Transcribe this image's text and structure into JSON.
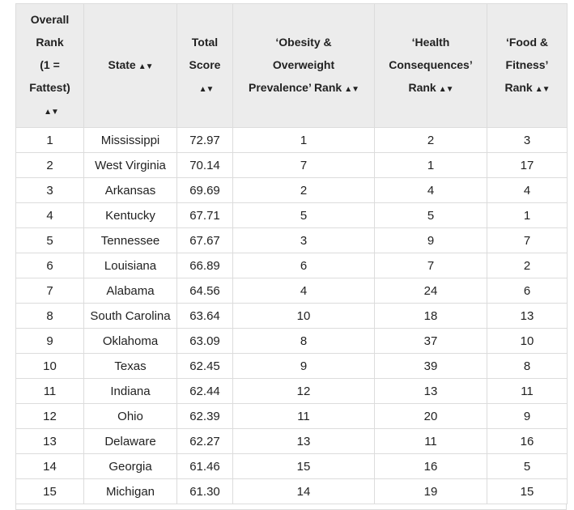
{
  "table": {
    "headers": [
      {
        "key": "rank",
        "lines": [
          "Overall",
          "Rank",
          "(1 =",
          "Fattest)"
        ]
      },
      {
        "key": "state",
        "lines": [
          "State"
        ]
      },
      {
        "key": "score",
        "lines": [
          "Total",
          "Score"
        ]
      },
      {
        "key": "obesity",
        "lines": [
          "‘Obesity &",
          "Overweight",
          "Prevalence’ Rank"
        ]
      },
      {
        "key": "health",
        "lines": [
          "‘Health",
          "Consequences’",
          "Rank"
        ]
      },
      {
        "key": "food",
        "lines": [
          "‘Food &",
          "Fitness’",
          "Rank"
        ]
      }
    ],
    "rows": [
      [
        "1",
        "Mississippi",
        "72.97",
        "1",
        "2",
        "3"
      ],
      [
        "2",
        "West Virginia",
        "70.14",
        "7",
        "1",
        "17"
      ],
      [
        "3",
        "Arkansas",
        "69.69",
        "2",
        "4",
        "4"
      ],
      [
        "4",
        "Kentucky",
        "67.71",
        "5",
        "5",
        "1"
      ],
      [
        "5",
        "Tennessee",
        "67.67",
        "3",
        "9",
        "7"
      ],
      [
        "6",
        "Louisiana",
        "66.89",
        "6",
        "7",
        "2"
      ],
      [
        "7",
        "Alabama",
        "64.56",
        "4",
        "24",
        "6"
      ],
      [
        "8",
        "South Carolina",
        "63.64",
        "10",
        "18",
        "13"
      ],
      [
        "9",
        "Oklahoma",
        "63.09",
        "8",
        "37",
        "10"
      ],
      [
        "10",
        "Texas",
        "62.45",
        "9",
        "39",
        "8"
      ],
      [
        "11",
        "Indiana",
        "62.44",
        "12",
        "13",
        "11"
      ],
      [
        "12",
        "Ohio",
        "62.39",
        "11",
        "20",
        "9"
      ],
      [
        "13",
        "Delaware",
        "62.27",
        "13",
        "11",
        "16"
      ],
      [
        "14",
        "Georgia",
        "61.46",
        "15",
        "16",
        "5"
      ],
      [
        "15",
        "Michigan",
        "61.30",
        "14",
        "19",
        "15"
      ]
    ],
    "sort_icon": "sort-arrows-icon"
  }
}
